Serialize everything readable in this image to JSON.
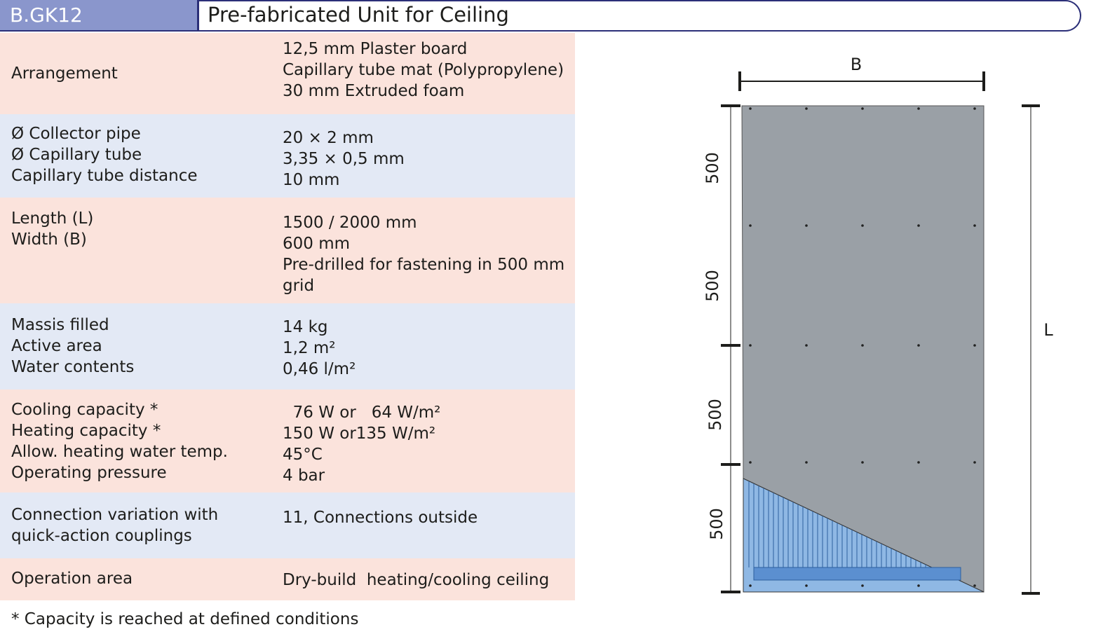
{
  "header": {
    "code": "B.GK12",
    "title": "Pre-fabricated Unit for Ceiling"
  },
  "table": {
    "rows": [
      {
        "labels": [
          "Arrangement"
        ],
        "values": [
          "12,5 mm Plaster board",
          "Capillary tube mat (Polypropylene)",
          "30 mm Extruded foam"
        ]
      },
      {
        "labels": [
          "Ø Collector pipe",
          "Ø Capillary tube",
          "Capillary tube distance"
        ],
        "values": [
          "20 × 2 mm",
          "3,35 × 0,5 mm",
          "10 mm"
        ]
      },
      {
        "labels": [
          "Length (L)",
          "Width (B)"
        ],
        "values": [
          "1500 / 2000 mm",
          "600 mm",
          "Pre-drilled for fastening in 500 mm",
          "grid"
        ]
      },
      {
        "labels": [
          "Massis filled",
          "Active area",
          "Water contents"
        ],
        "values": [
          "14 kg",
          "1,2 m²",
          "0,46 l/m²"
        ]
      },
      {
        "labels": [
          "Cooling capacity *",
          "Heating capacity *",
          "Allow. heating water temp.",
          "Operating pressure"
        ],
        "values": [
          "  76 W or   64 W/m²",
          "150 W or135 W/m²",
          "45°C",
          "4 bar"
        ]
      },
      {
        "labels": [
          "Connection variation with",
          "quick-action couplings"
        ],
        "values": [
          "11, Connections outside"
        ]
      },
      {
        "labels": [
          "Operation area"
        ],
        "values": [
          "Dry-build  heating/cooling ceiling"
        ]
      }
    ]
  },
  "footnote": "* Capacity is reached at defined conditions",
  "diagram": {
    "width_label": "B",
    "length_label": "L",
    "segments": [
      "500",
      "500",
      "500",
      "500"
    ]
  }
}
